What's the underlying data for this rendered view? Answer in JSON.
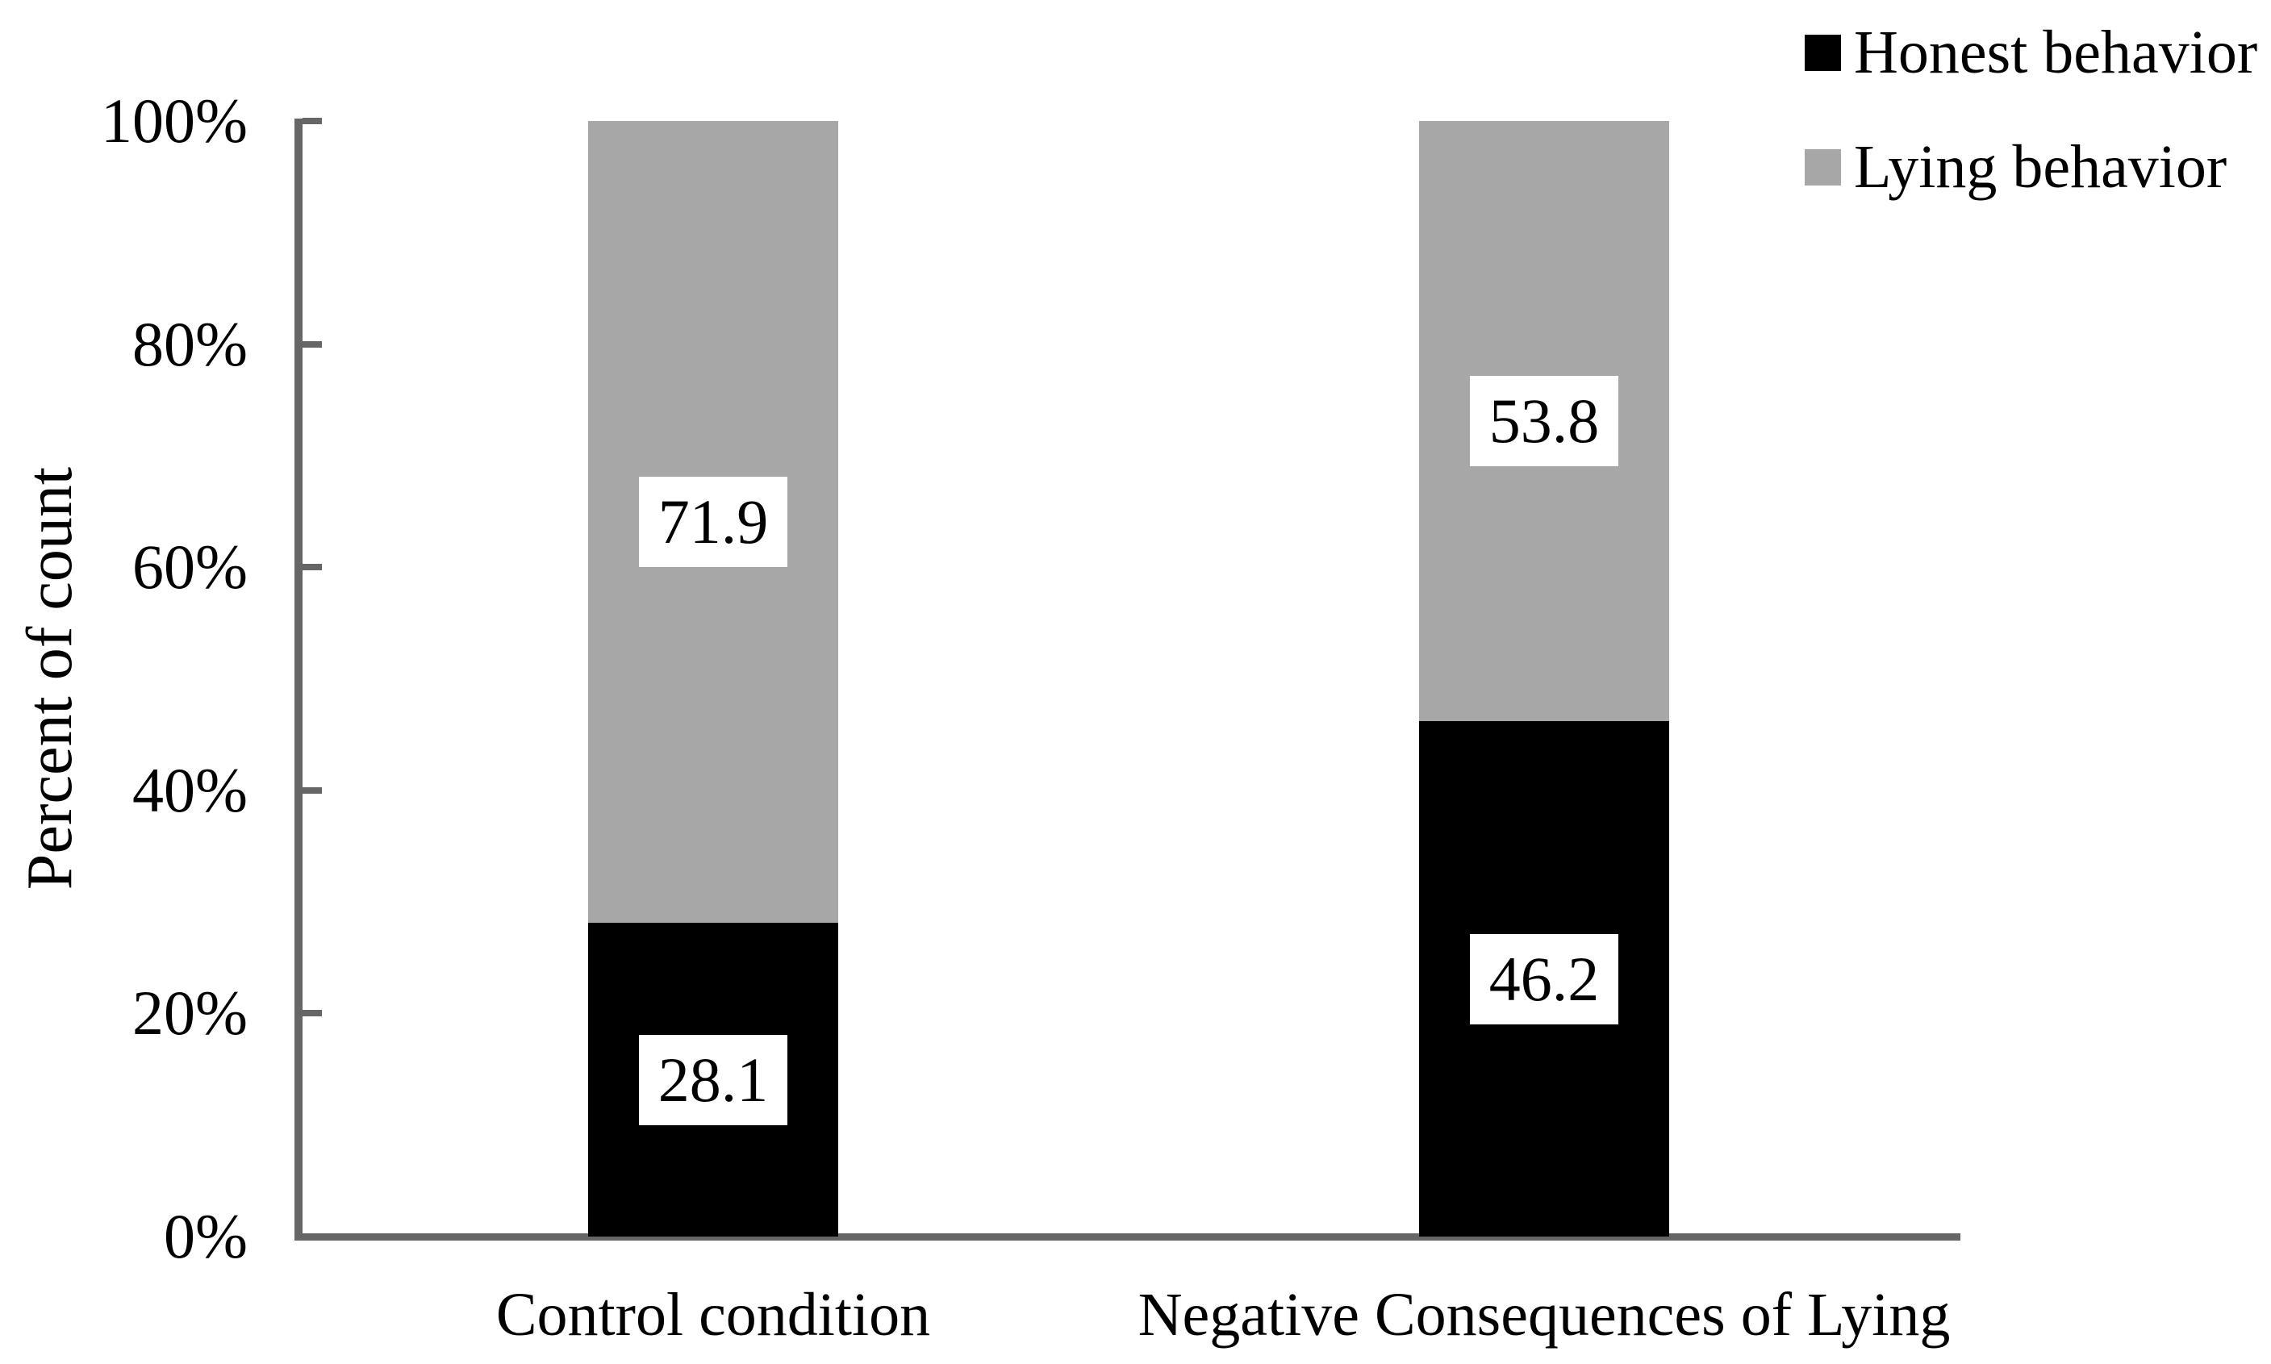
{
  "chart_data": {
    "type": "bar",
    "stacked": true,
    "orientation": "vertical",
    "title": "",
    "xlabel": "",
    "ylabel": "Percent of count",
    "categories": [
      "Control condition",
      "Negative Consequences of Lying"
    ],
    "series": [
      {
        "name": "Honest behavior",
        "color": "#000000",
        "values": [
          28.1,
          46.2
        ]
      },
      {
        "name": "Lying behavior",
        "color": "#A7A7A7",
        "values": [
          71.9,
          53.8
        ]
      }
    ],
    "data_labels_shown": true,
    "data_label_box_color": "#FFFFFF",
    "y_ticks": [
      "100%",
      "80%",
      "60%",
      "40%",
      "20%",
      "0%"
    ],
    "ylim": [
      0,
      100
    ],
    "y_tick_step": 20,
    "grid": "off",
    "legend_position": "top-right",
    "axis_color": "#666666",
    "text_color": "#000000",
    "background_color": "#FFFFFF"
  }
}
